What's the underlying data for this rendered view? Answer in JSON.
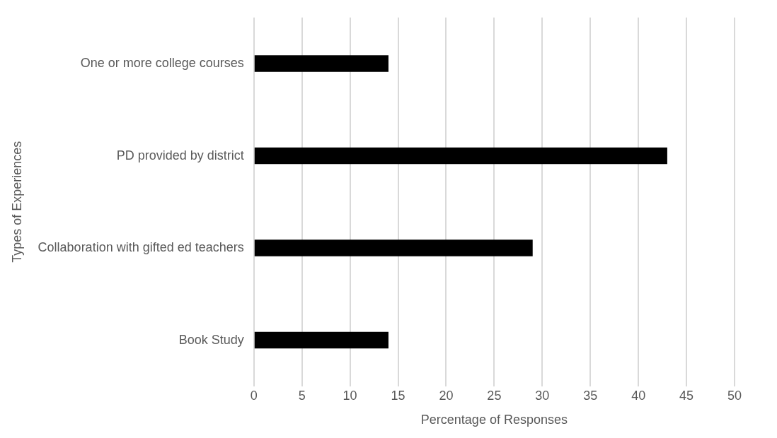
{
  "chart_data": {
    "type": "bar",
    "orientation": "horizontal",
    "xlabel": "Percentage of Responses",
    "ylabel": "Types of Experiences",
    "categories": [
      "One or more college courses",
      "PD provided by district",
      "Collaboration with gifted ed teachers",
      "Book Study"
    ],
    "values": [
      14,
      43,
      29,
      14
    ],
    "color": "#000000",
    "xlim": [
      0,
      50
    ],
    "xticks": [
      0,
      5,
      10,
      15,
      20,
      25,
      30,
      35,
      40,
      45,
      50
    ],
    "grid": "x",
    "legend": false
  }
}
